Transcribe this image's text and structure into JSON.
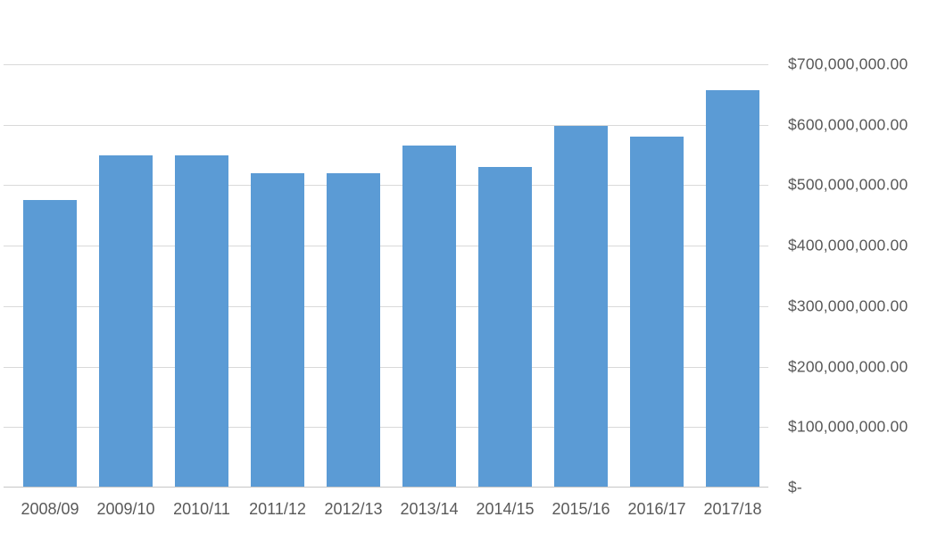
{
  "chart_data": {
    "type": "bar",
    "title": "",
    "xlabel": "",
    "ylabel": "",
    "categories": [
      "2008/09",
      "2009/10",
      "2010/11",
      "2011/12",
      "2012/13",
      "2013/14",
      "2014/15",
      "2015/16",
      "2016/17",
      "2017/18"
    ],
    "values": [
      475000000,
      550000000,
      550000000,
      520000000,
      520000000,
      565000000,
      530000000,
      598000000,
      580000000,
      657000000
    ],
    "ylim": [
      0,
      700000000
    ],
    "ytick_step": 100000000,
    "ytick_labels_bottom_up": [
      "$-",
      "$100,000,000.00",
      "$200,000,000.00",
      "$300,000,000.00",
      "$400,000,000.00",
      "$500,000,000.00",
      "$600,000,000.00",
      "$700,000,000.00"
    ],
    "y_axis_side": "right",
    "grid": true,
    "legend_position": "none",
    "colors": {
      "bar": "#5b9bd5",
      "gridline": "#d9d9d9",
      "axis_line": "#c6c6c6",
      "tick_label": "#595959",
      "background": "#ffffff"
    }
  }
}
